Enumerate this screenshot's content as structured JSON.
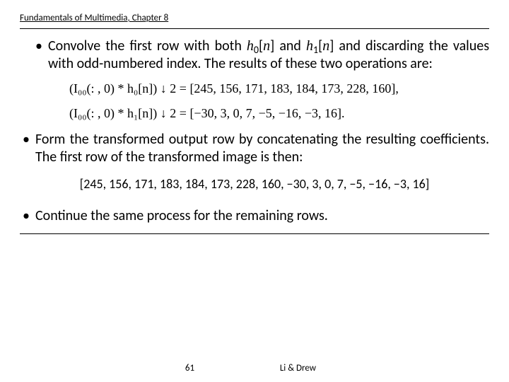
{
  "header": "Fundamentals of Multimedia, Chapter 8",
  "bullets": {
    "b1_pre": "Convolve the first row with both ",
    "b1_h0": "h",
    "b1_h0sub": "0",
    "b1_bracket0": "[",
    "b1_n0": "n",
    "b1_close0": "]",
    "b1_mid": " and ",
    "b1_h1": "h",
    "b1_h1sub": "1",
    "b1_bracket1": "[",
    "b1_n1": "n",
    "b1_close1": "]",
    "b1_post": " and discarding the values with odd-numbered index. The results of these two operations are:",
    "b2": "Form the transformed output row by concatenating the resulting coefficients. The first row of the transformed image is then:",
    "b3": "Continue the same process for the remaining rows."
  },
  "equations": {
    "eq1": "(I₀₀(: , 0) * h₀[n]) ↓ 2  =  [245, 156, 171, 183, 184, 173, 228, 160],",
    "eq2": "(I₀₀(: , 0) * h₁[n]) ↓ 2  =  [−30, 3, 0, 7, −5, −16, −3, 16]."
  },
  "rowvec": "[245, 156, 171, 183, 184, 173, 228, 160, −30, 3, 0, 7, −5, −16, −3, 16]",
  "footer": {
    "page": "61",
    "authors": "Li & Drew"
  }
}
